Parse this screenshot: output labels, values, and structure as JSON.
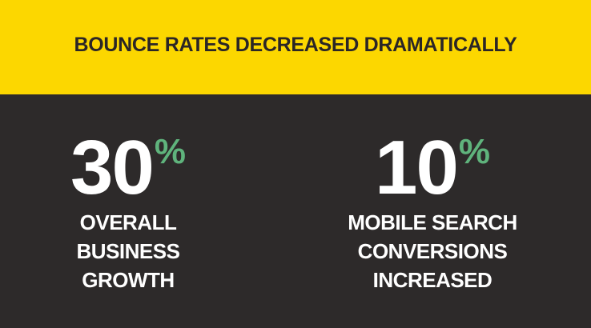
{
  "header": {
    "title": "BOUNCE RATES DECREASED DRAMATICALLY"
  },
  "stats": [
    {
      "value": "30",
      "unit": "%",
      "label": [
        "OVERALL",
        "BUSINESS",
        "GROWTH"
      ]
    },
    {
      "value": "10",
      "unit": "%",
      "label": [
        "MOBILE SEARCH",
        "CONVERSIONS",
        "INCREASED"
      ]
    }
  ]
}
